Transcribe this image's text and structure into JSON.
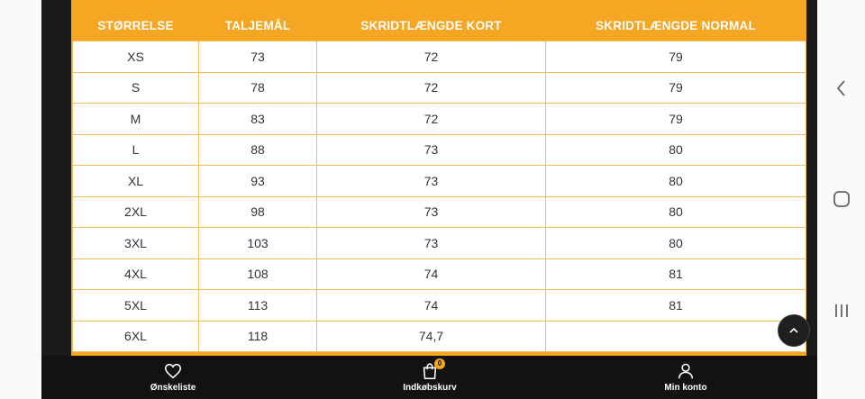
{
  "size_table": {
    "headers": [
      "STØRRELSE",
      "TALJEMÅL",
      "SKRIDTLÆNGDE KORT",
      "SKRIDTLÆNGDE NORMAL"
    ],
    "rows": [
      [
        "XS",
        "73",
        "72",
        "79"
      ],
      [
        "S",
        "78",
        "72",
        "79"
      ],
      [
        "M",
        "83",
        "72",
        "79"
      ],
      [
        "L",
        "88",
        "73",
        "80"
      ],
      [
        "XL",
        "93",
        "73",
        "80"
      ],
      [
        "2XL",
        "98",
        "73",
        "80"
      ],
      [
        "3XL",
        "103",
        "73",
        "80"
      ],
      [
        "4XL",
        "108",
        "74",
        "81"
      ],
      [
        "5XL",
        "113",
        "74",
        "81"
      ],
      [
        "6XL",
        "118",
        "74,7",
        ""
      ]
    ]
  },
  "bottom_nav": {
    "wishlist_label": "Ønskeliste",
    "cart_label": "Indkøbskurv",
    "cart_count": "0",
    "account_label": "Min konto"
  },
  "colors": {
    "accent": "#f5a623",
    "nav_bg": "#121212",
    "text": "#333333"
  },
  "icons": [
    "heart-icon",
    "shopping-bag-icon",
    "user-icon",
    "chevron-up-icon",
    "back-icon",
    "home-icon",
    "recents-icon"
  ]
}
